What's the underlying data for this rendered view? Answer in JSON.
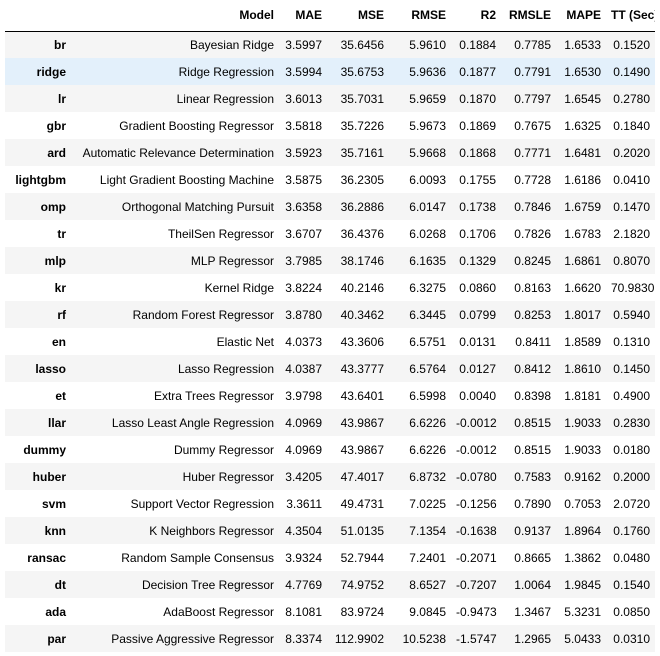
{
  "table": {
    "headers": [
      "",
      "Model",
      "MAE",
      "MSE",
      "RMSE",
      "R2",
      "RMSLE",
      "MAPE",
      "TT (Sec)"
    ],
    "highlight_row": 1,
    "rows": [
      [
        "br",
        "Bayesian Ridge",
        "3.5997",
        "35.6456",
        "5.9610",
        "0.1884",
        "0.7785",
        "1.6533",
        "0.1520"
      ],
      [
        "ridge",
        "Ridge Regression",
        "3.5994",
        "35.6753",
        "5.9636",
        "0.1877",
        "0.7791",
        "1.6530",
        "0.1490"
      ],
      [
        "lr",
        "Linear Regression",
        "3.6013",
        "35.7031",
        "5.9659",
        "0.1870",
        "0.7797",
        "1.6545",
        "0.2780"
      ],
      [
        "gbr",
        "Gradient Boosting Regressor",
        "3.5818",
        "35.7226",
        "5.9673",
        "0.1869",
        "0.7675",
        "1.6325",
        "0.1840"
      ],
      [
        "ard",
        "Automatic Relevance Determination",
        "3.5923",
        "35.7161",
        "5.9668",
        "0.1868",
        "0.7771",
        "1.6481",
        "0.2020"
      ],
      [
        "lightgbm",
        "Light Gradient Boosting Machine",
        "3.5875",
        "36.2305",
        "6.0093",
        "0.1755",
        "0.7728",
        "1.6186",
        "0.0410"
      ],
      [
        "omp",
        "Orthogonal Matching Pursuit",
        "3.6358",
        "36.2886",
        "6.0147",
        "0.1738",
        "0.7846",
        "1.6759",
        "0.1470"
      ],
      [
        "tr",
        "TheilSen Regressor",
        "3.6707",
        "36.4376",
        "6.0268",
        "0.1706",
        "0.7826",
        "1.6783",
        "2.1820"
      ],
      [
        "mlp",
        "MLP Regressor",
        "3.7985",
        "38.1746",
        "6.1635",
        "0.1329",
        "0.8245",
        "1.6861",
        "0.8070"
      ],
      [
        "kr",
        "Kernel Ridge",
        "3.8224",
        "40.2146",
        "6.3275",
        "0.0860",
        "0.8163",
        "1.6620",
        "70.9830"
      ],
      [
        "rf",
        "Random Forest Regressor",
        "3.8780",
        "40.3462",
        "6.3445",
        "0.0799",
        "0.8253",
        "1.8017",
        "0.5940"
      ],
      [
        "en",
        "Elastic Net",
        "4.0373",
        "43.3606",
        "6.5751",
        "0.0131",
        "0.8411",
        "1.8589",
        "0.1310"
      ],
      [
        "lasso",
        "Lasso Regression",
        "4.0387",
        "43.3777",
        "6.5764",
        "0.0127",
        "0.8412",
        "1.8610",
        "0.1450"
      ],
      [
        "et",
        "Extra Trees Regressor",
        "3.9798",
        "43.6401",
        "6.5998",
        "0.0040",
        "0.8398",
        "1.8181",
        "0.4900"
      ],
      [
        "llar",
        "Lasso Least Angle Regression",
        "4.0969",
        "43.9867",
        "6.6226",
        "-0.0012",
        "0.8515",
        "1.9033",
        "0.2830"
      ],
      [
        "dummy",
        "Dummy Regressor",
        "4.0969",
        "43.9867",
        "6.6226",
        "-0.0012",
        "0.8515",
        "1.9033",
        "0.0180"
      ],
      [
        "huber",
        "Huber Regressor",
        "3.4205",
        "47.4017",
        "6.8732",
        "-0.0780",
        "0.7583",
        "0.9162",
        "0.2000"
      ],
      [
        "svm",
        "Support Vector Regression",
        "3.3611",
        "49.4731",
        "7.0225",
        "-0.1256",
        "0.7890",
        "0.7053",
        "2.0720"
      ],
      [
        "knn",
        "K Neighbors Regressor",
        "4.3504",
        "51.0135",
        "7.1354",
        "-0.1638",
        "0.9137",
        "1.8964",
        "0.1760"
      ],
      [
        "ransac",
        "Random Sample Consensus",
        "3.9324",
        "52.7944",
        "7.2401",
        "-0.2071",
        "0.8665",
        "1.3862",
        "0.0480"
      ],
      [
        "dt",
        "Decision Tree Regressor",
        "4.7769",
        "74.9752",
        "8.6527",
        "-0.7207",
        "1.0064",
        "1.9845",
        "0.1540"
      ],
      [
        "ada",
        "AdaBoost Regressor",
        "8.1081",
        "83.9724",
        "9.0845",
        "-0.9473",
        "1.3467",
        "5.3231",
        "0.0850"
      ],
      [
        "par",
        "Passive Aggressive Regressor",
        "8.3374",
        "112.9902",
        "10.5238",
        "-1.5747",
        "1.2965",
        "5.0433",
        "0.0310"
      ]
    ]
  }
}
